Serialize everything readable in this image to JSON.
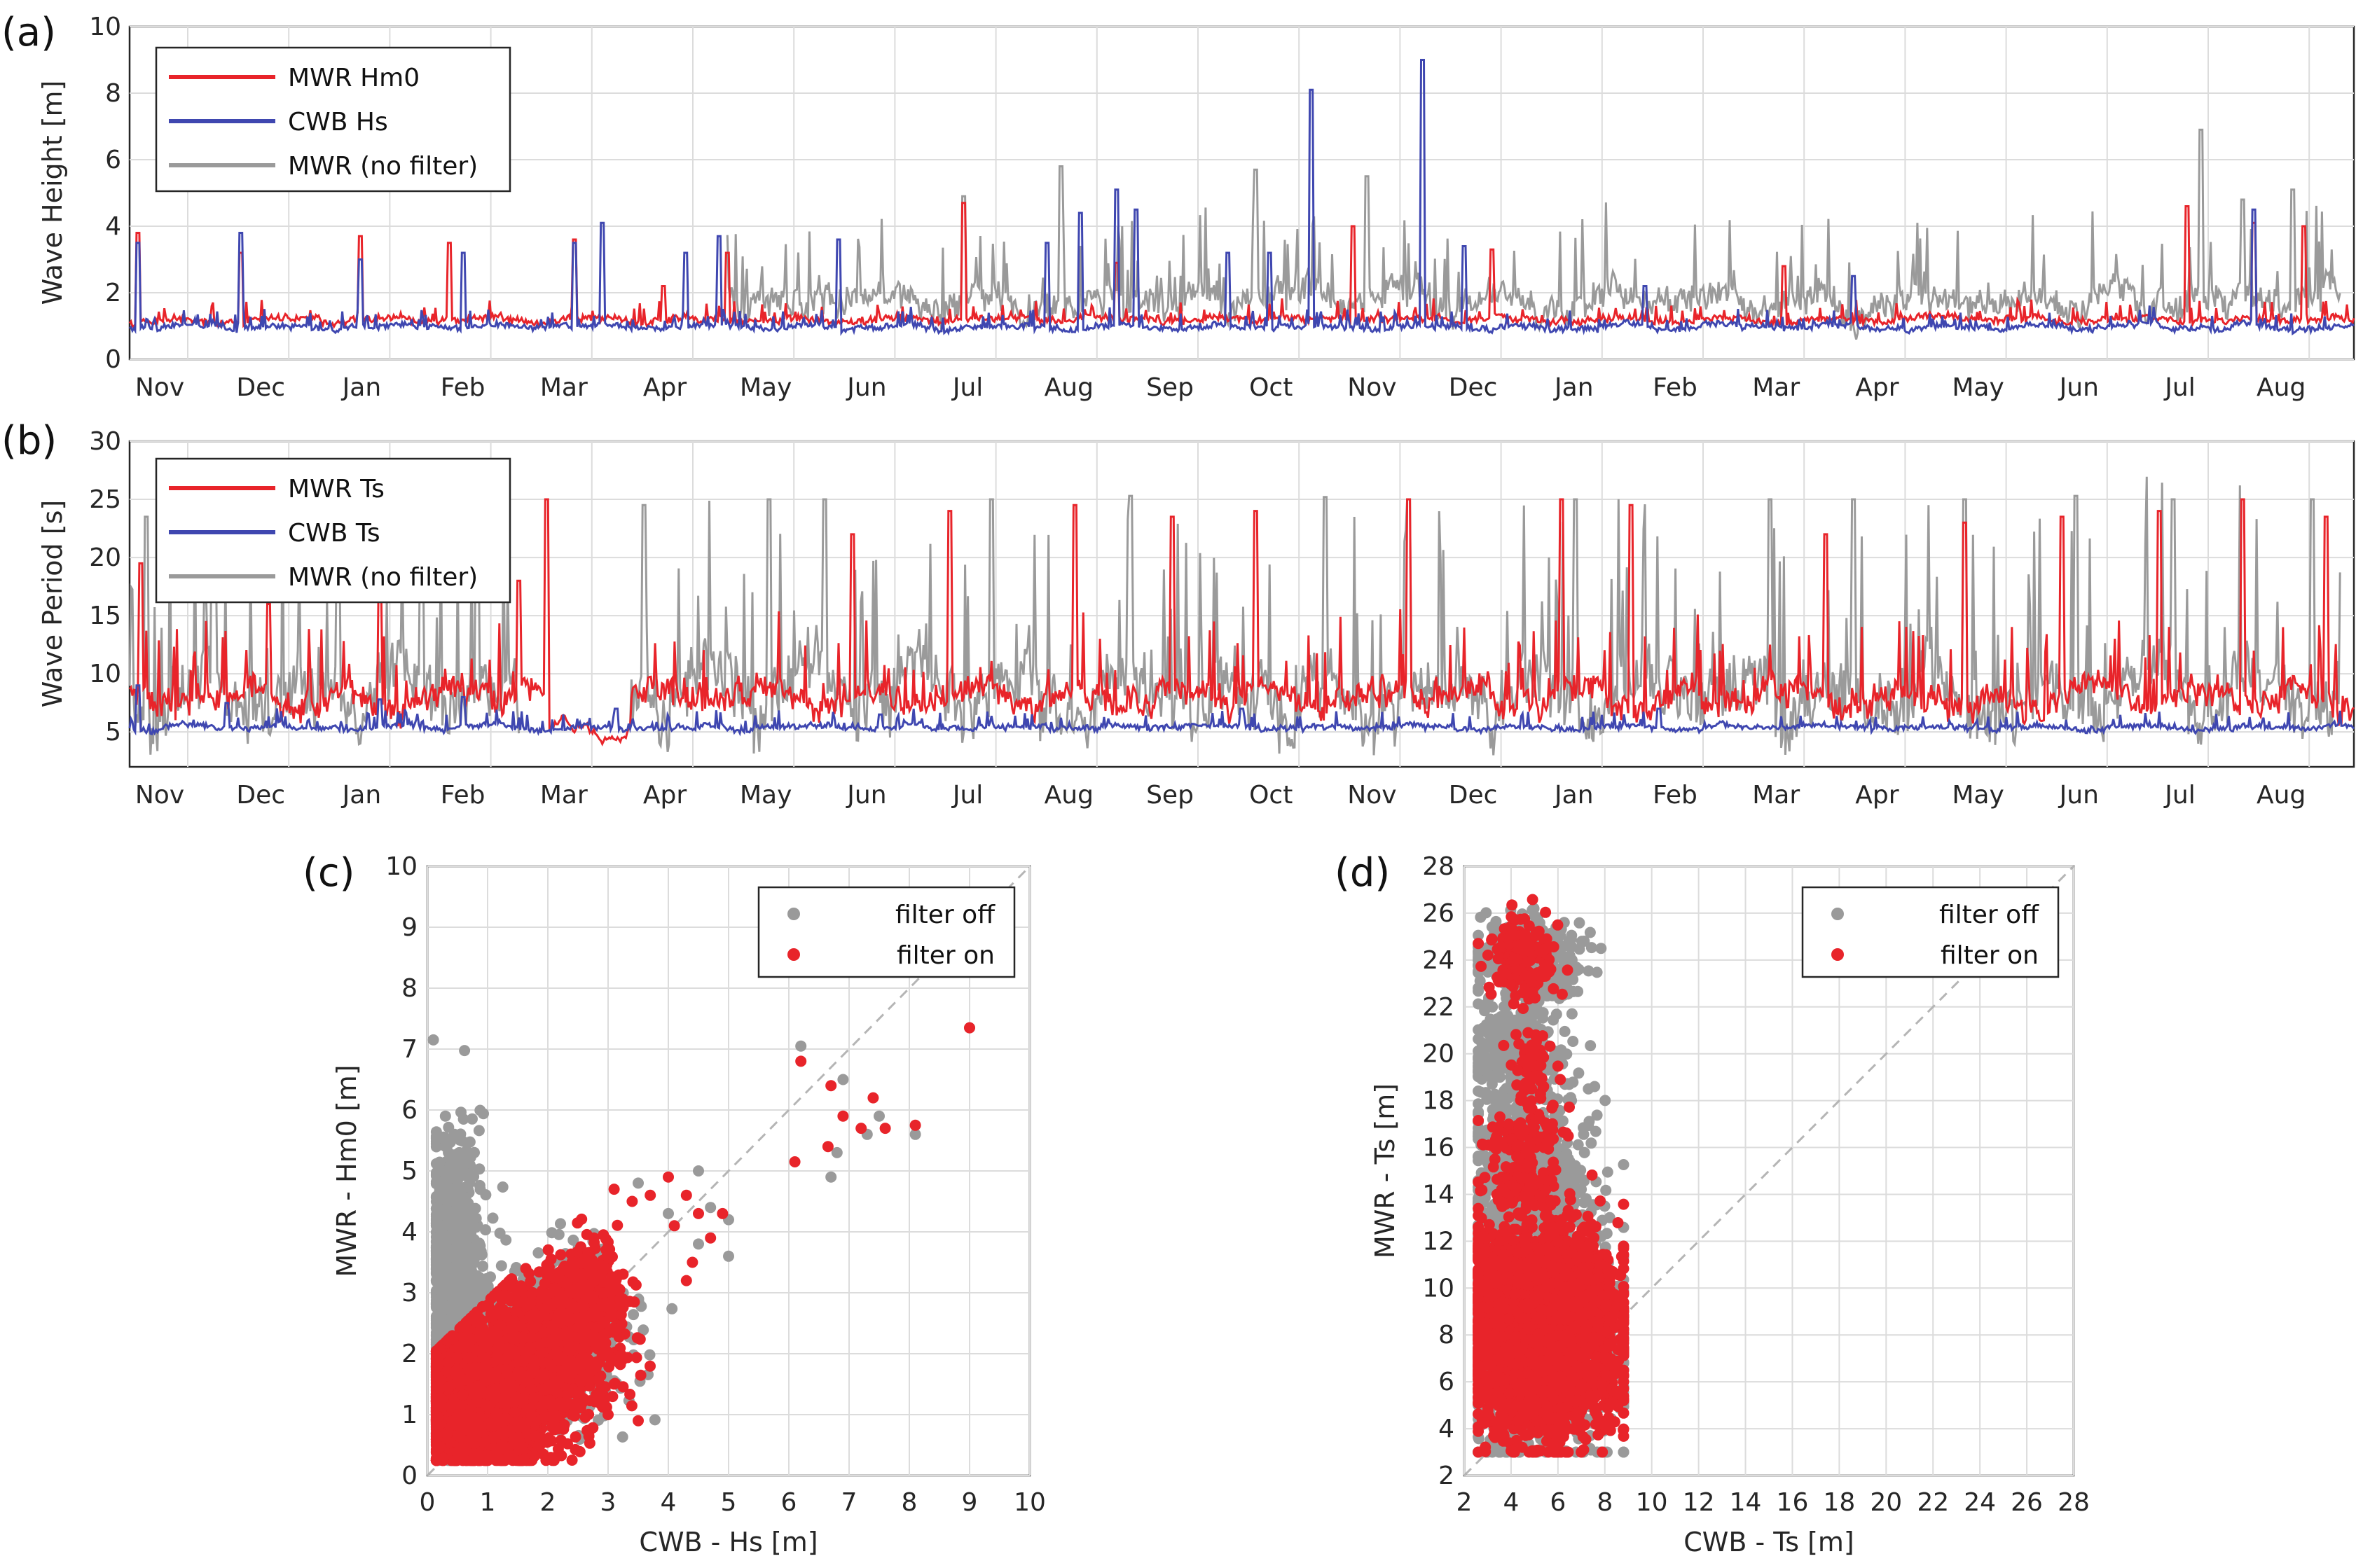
{
  "panels": {
    "a": "(a)",
    "b": "(b)",
    "c": "(c)",
    "d": "(d)"
  },
  "colors": {
    "mwr": "#e8242a",
    "cwb": "#3f47b0",
    "nofilter": "#9a9a9a",
    "grid": "#dcdcdc",
    "diag": "#b5b5b5"
  },
  "chart_data": [
    {
      "id": "a",
      "type": "line",
      "ylabel": "Wave Height [m]",
      "ylim": [
        0,
        10
      ],
      "yticks": [
        0,
        2,
        4,
        6,
        8,
        10
      ],
      "x_month_labels": [
        "Nov",
        "Dec",
        "Jan",
        "Feb",
        "Mar",
        "Apr",
        "May",
        "Jun",
        "Jul",
        "Aug",
        "Sep",
        "Oct",
        "Nov",
        "Dec",
        "Jan",
        "Feb",
        "Mar",
        "Apr",
        "May",
        "Jun",
        "Jul",
        "Aug"
      ],
      "grid": true,
      "legend_position": "top-left",
      "series": [
        {
          "name": "MWR Hm0",
          "color": "#e8242a",
          "base": 1.1,
          "amp": 0.7,
          "seed": 11,
          "peaks": [
            [
              0.3,
              3.8
            ],
            [
              4.0,
              3.2
            ],
            [
              8.3,
              3.7
            ],
            [
              11.5,
              3.5
            ],
            [
              16.0,
              3.6
            ],
            [
              19.2,
              2.2
            ],
            [
              21.5,
              3.2
            ],
            [
              30.0,
              4.7
            ],
            [
              35.5,
              2.9
            ],
            [
              44.0,
              4.0
            ],
            [
              49.0,
              3.3
            ],
            [
              59.5,
              2.8
            ],
            [
              74.0,
              4.6
            ],
            [
              76.4,
              4.1
            ],
            [
              78.2,
              4.0
            ]
          ]
        },
        {
          "name": "CWB Hs",
          "color": "#3f47b0",
          "base": 0.9,
          "amp": 0.6,
          "seed": 23,
          "peaks": [
            [
              0.3,
              3.5
            ],
            [
              4.0,
              3.8
            ],
            [
              8.3,
              3.0
            ],
            [
              12.0,
              3.2
            ],
            [
              16.0,
              3.5
            ],
            [
              17.0,
              4.1
            ],
            [
              20.0,
              3.2
            ],
            [
              21.2,
              3.7
            ],
            [
              25.5,
              3.6
            ],
            [
              33.0,
              3.5
            ],
            [
              34.2,
              4.4
            ],
            [
              35.5,
              5.1
            ],
            [
              36.2,
              4.5
            ],
            [
              39.5,
              3.2
            ],
            [
              41.0,
              3.2
            ],
            [
              42.5,
              8.1
            ],
            [
              46.5,
              9.0
            ],
            [
              48.0,
              3.4
            ],
            [
              54.5,
              2.2
            ],
            [
              62.0,
              2.5
            ],
            [
              76.4,
              4.5
            ]
          ]
        },
        {
          "name": "MWR (no filter)",
          "color": "#9a9a9a",
          "base": 1.4,
          "amp": 3.0,
          "seed": 37,
          "active": [
            [
              21.5,
              79.5
            ]
          ],
          "peaks": [
            [
              30.0,
              4.9
            ],
            [
              33.5,
              5.8
            ],
            [
              40.5,
              5.7
            ],
            [
              44.5,
              5.5
            ],
            [
              74.5,
              6.9
            ],
            [
              76.0,
              4.8
            ],
            [
              77.8,
              5.1
            ]
          ]
        }
      ]
    },
    {
      "id": "b",
      "type": "line",
      "ylabel": "Wave Period [s]",
      "ylim": [
        2,
        30
      ],
      "yticks": [
        5,
        10,
        15,
        20,
        25,
        30
      ],
      "x_month_labels": [
        "Nov",
        "Dec",
        "Jan",
        "Feb",
        "Mar",
        "Apr",
        "May",
        "Jun",
        "Jul",
        "Aug",
        "Sep",
        "Oct",
        "Nov",
        "Dec",
        "Jan",
        "Feb",
        "Mar",
        "Apr",
        "May",
        "Jun",
        "Jul",
        "Aug"
      ],
      "grid": true,
      "legend_position": "top-left",
      "series": [
        {
          "name": "MWR Ts",
          "color": "#e8242a",
          "base": 7.0,
          "amp": 8.0,
          "seed": 51,
          "quiet": [
            [
              15.0,
              18.0
            ]
          ],
          "peaks": [
            [
              0.4,
              19.5
            ],
            [
              5.0,
              16.0
            ],
            [
              9.0,
              17.0
            ],
            [
              14.0,
              18.0
            ],
            [
              15.0,
              25.0
            ],
            [
              26.0,
              22.0
            ],
            [
              29.5,
              24.0
            ],
            [
              34.0,
              24.5
            ],
            [
              37.5,
              23.5
            ],
            [
              40.5,
              24.0
            ],
            [
              46.0,
              25.0
            ],
            [
              51.5,
              25.0
            ],
            [
              54.0,
              24.5
            ],
            [
              61.0,
              22.0
            ],
            [
              66.0,
              23.0
            ],
            [
              69.5,
              23.5
            ],
            [
              73.0,
              24.0
            ],
            [
              76.0,
              25.0
            ],
            [
              79.0,
              23.5
            ]
          ]
        },
        {
          "name": "CWB Ts",
          "color": "#3f47b0",
          "base": 5.2,
          "amp": 1.6,
          "seed": 67,
          "peaks": [
            [
              0.3,
              9.0
            ],
            [
              3.5,
              7.5
            ],
            [
              9.0,
              7.8
            ],
            [
              12.0,
              8.0
            ],
            [
              17.5,
              7.0
            ],
            [
              27.0,
              6.5
            ],
            [
              40.0,
              7.0
            ],
            [
              55.0,
              7.0
            ]
          ]
        },
        {
          "name": "MWR (no filter)",
          "color": "#9a9a9a",
          "base": 6.0,
          "amp": 18.0,
          "seed": 79,
          "active": [
            [
              0.0,
              14.0
            ],
            [
              18.0,
              79.5
            ]
          ],
          "quiet": [
            [
              14.0,
              18.0
            ]
          ],
          "peaks": [
            [
              0.6,
              23.5
            ],
            [
              3.0,
              22.0
            ],
            [
              7.5,
              21.5
            ],
            [
              10.5,
              22.5
            ],
            [
              12.5,
              23.0
            ],
            [
              18.5,
              24.5
            ],
            [
              23.0,
              25.0
            ],
            [
              25.0,
              25.0
            ],
            [
              31.0,
              25.0
            ],
            [
              36.0,
              25.3
            ],
            [
              43.0,
              25.2
            ],
            [
              46.0,
              25.0
            ],
            [
              52.0,
              25.0
            ],
            [
              59.0,
              25.0
            ],
            [
              62.0,
              25.0
            ],
            [
              66.0,
              25.0
            ],
            [
              70.0,
              25.3
            ],
            [
              73.5,
              25.0
            ],
            [
              78.5,
              25.0
            ]
          ]
        }
      ]
    },
    {
      "id": "c",
      "type": "scatter",
      "xlabel": "CWB - Hs [m]",
      "ylabel": "MWR - Hm0 [m]",
      "xlim": [
        0,
        10
      ],
      "ylim": [
        0,
        10
      ],
      "xticks": [
        0,
        1,
        2,
        3,
        4,
        5,
        6,
        7,
        8,
        9,
        10
      ],
      "yticks": [
        0,
        1,
        2,
        3,
        4,
        5,
        6,
        7,
        8,
        9,
        10
      ],
      "grid": true,
      "legend_position": "top-right",
      "diagonal": true,
      "series": [
        {
          "name": "filter off",
          "color": "#9a9a9a",
          "seed": 101,
          "clouds": [
            [
              0.45,
              3.2,
              0.25,
              1.2,
              900
            ],
            [
              1.6,
              1.8,
              0.7,
              0.55,
              900
            ],
            [
              2.3,
              2.6,
              0.45,
              0.5,
              400
            ]
          ],
          "points": [
            [
              0.1,
              7.15
            ],
            [
              0.3,
              5.9
            ],
            [
              0.6,
              5.85
            ],
            [
              0.35,
              5.3
            ],
            [
              0.45,
              5.6
            ],
            [
              0.25,
              5.0
            ],
            [
              0.7,
              4.8
            ],
            [
              3.5,
              4.8
            ],
            [
              4.5,
              5.0
            ],
            [
              4.0,
              4.3
            ],
            [
              4.7,
              4.4
            ],
            [
              4.5,
              3.8
            ],
            [
              5.0,
              4.2
            ],
            [
              6.2,
              7.05
            ],
            [
              6.7,
              4.9
            ],
            [
              6.9,
              6.5
            ],
            [
              7.5,
              5.9
            ],
            [
              7.3,
              5.6
            ],
            [
              8.1,
              5.6
            ],
            [
              9.0,
              7.35
            ],
            [
              6.8,
              5.3
            ],
            [
              5.0,
              3.6
            ]
          ]
        },
        {
          "name": "filter on",
          "color": "#e8242a",
          "seed": 113,
          "clouds": [
            [
              0.9,
              1.1,
              0.6,
              0.55,
              1400
            ],
            [
              1.8,
              2.0,
              0.55,
              0.6,
              1100
            ],
            [
              2.6,
              2.9,
              0.3,
              0.45,
              400
            ]
          ],
          "points": [
            [
              3.1,
              4.7
            ],
            [
              3.4,
              4.5
            ],
            [
              3.7,
              4.6
            ],
            [
              4.1,
              4.1
            ],
            [
              4.5,
              4.3
            ],
            [
              4.0,
              4.9
            ],
            [
              4.3,
              4.6
            ],
            [
              4.9,
              4.3
            ],
            [
              4.7,
              3.9
            ],
            [
              6.1,
              5.15
            ],
            [
              6.2,
              6.8
            ],
            [
              6.65,
              5.4
            ],
            [
              6.7,
              6.4
            ],
            [
              6.9,
              5.9
            ],
            [
              7.2,
              5.7
            ],
            [
              7.4,
              6.2
            ],
            [
              7.6,
              5.7
            ],
            [
              8.1,
              5.75
            ],
            [
              9.0,
              7.35
            ],
            [
              4.3,
              3.2
            ],
            [
              4.4,
              3.5
            ],
            [
              3.0,
              1.0
            ],
            [
              3.5,
              0.9
            ],
            [
              2.2,
              1.2
            ],
            [
              2.4,
              1.0
            ],
            [
              2.7,
              0.75
            ],
            [
              2.1,
              0.9
            ]
          ]
        }
      ]
    },
    {
      "id": "d",
      "type": "scatter",
      "xlabel": "CWB - Ts [m]",
      "ylabel": "MWR - Ts [m]",
      "xlim": [
        2,
        28
      ],
      "ylim": [
        2,
        28
      ],
      "xticks": [
        2,
        4,
        6,
        8,
        10,
        12,
        14,
        16,
        18,
        20,
        22,
        24,
        26,
        28
      ],
      "yticks": [
        2,
        4,
        6,
        8,
        10,
        12,
        14,
        16,
        18,
        20,
        22,
        24,
        26,
        28
      ],
      "grid": true,
      "legend_position": "top-right",
      "diagonal": true,
      "series": [
        {
          "name": "filter off",
          "color": "#9a9a9a",
          "seed": 131,
          "clouds": [
            [
              4.6,
              24.0,
              1.2,
              0.9,
              320
            ],
            [
              4.3,
              20.0,
              1.1,
              1.2,
              320
            ],
            [
              4.6,
              16.0,
              1.2,
              1.2,
              320
            ],
            [
              4.7,
              13.5,
              1.4,
              0.9,
              260
            ],
            [
              5.3,
              7.5,
              1.8,
              2.6,
              900
            ]
          ],
          "points": [
            [
              6.3,
              18.7
            ],
            [
              7.3,
              18.5
            ],
            [
              6.6,
              24.0
            ],
            [
              3.2,
              22.0
            ],
            [
              7.0,
              13.0
            ],
            [
              8.7,
              9.0
            ],
            [
              6.0,
              3.2
            ]
          ]
        },
        {
          "name": "filter on",
          "color": "#e8242a",
          "seed": 149,
          "clouds": [
            [
              4.4,
              24.0,
              0.7,
              0.9,
              160
            ],
            [
              4.8,
              19.5,
              0.4,
              0.8,
              70
            ],
            [
              4.6,
              16.5,
              0.8,
              0.6,
              90
            ],
            [
              4.5,
              14.3,
              0.8,
              0.6,
              110
            ],
            [
              5.4,
              8.0,
              1.6,
              2.2,
              2600
            ],
            [
              4.3,
              11.0,
              1.2,
              0.6,
              300
            ]
          ],
          "points": [
            [
              6.1,
              18.9
            ],
            [
              3.9,
              17.0
            ],
            [
              5.4,
              16.0
            ],
            [
              3.4,
              14.0
            ]
          ]
        }
      ]
    }
  ]
}
